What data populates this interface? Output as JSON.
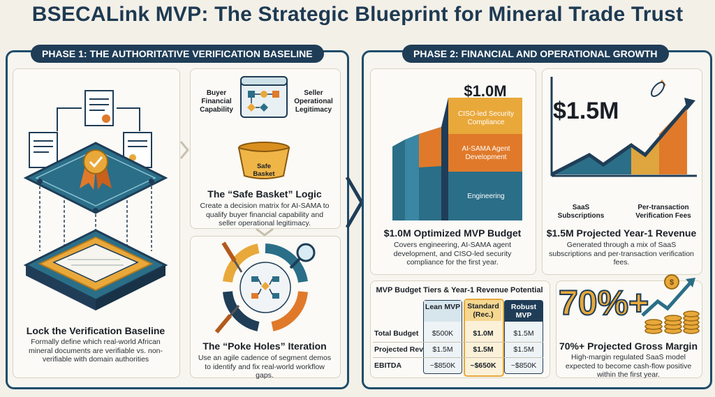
{
  "title": "BSECALink MVP: The Strategic Blueprint for Mineral Trade Trust",
  "phase1": {
    "tab": "PHASE 1: THE AUTHORITATIVE VERIFICATION BASELINE",
    "baseline": {
      "heading": "Lock the Verification Baseline",
      "body": "Formally define which real-world African mineral documents are verifiable vs. non-verifiable with domain authorities"
    },
    "matrix": {
      "left_label": "Buyer Financial Capability",
      "right_label": "Seller Operational Legitimacy"
    },
    "safe_basket": {
      "basket_label": "Safe Basket",
      "heading": "The “Safe Basket” Logic",
      "body": "Create a decision matrix for AI-SAMA to qualify buyer financial capability and seller operational legitimacy."
    },
    "poke_holes": {
      "heading": "The “Poke Holes” Iteration",
      "body": "Use an agile cadence of segment demos to identify and fix real-world workflow gaps."
    }
  },
  "phase2": {
    "tab": "PHASE 2: FINANCIAL AND OPERATIONAL GROWTH",
    "budget": {
      "total": "$1.0M",
      "layers": [
        "CISO-led Security Compliance",
        "AI-SAMA Agent Development",
        "Engineering"
      ],
      "heading": "$1.0M Optimized MVP Budget",
      "body": "Covers engineering, AI-SAMA agent development, and CISO-led security compliance for the first year."
    },
    "revenue": {
      "amount": "$1.5M",
      "label_left": "SaaS Subscriptions",
      "label_right": "Per-transaction Verification Fees",
      "heading": "$1.5M Projected Year-1 Revenue",
      "body": "Generated through a mix of SaaS subscriptions and per-transaction verification fees."
    },
    "tiers": {
      "heading": "MVP Budget Tiers & Year-1 Revenue Potential",
      "columns": [
        "Lean MVP",
        "Standard (Rec.)",
        "Robust MVP"
      ],
      "rows": [
        {
          "label": "Total Budget",
          "values": [
            "$500K",
            "$1.0M",
            "$1.5M"
          ]
        },
        {
          "label": "Projected Rev",
          "values": [
            "$1.5M",
            "$1.5M",
            "$1.5M"
          ]
        },
        {
          "label": "EBITDA",
          "values": [
            "~$850K",
            "~$650K",
            "~$850K"
          ]
        }
      ]
    },
    "margin": {
      "big": "70%+",
      "heading": "70%+ Projected Gross Margin",
      "body": "High-margin regulated SaaS model expected to become cash-flow positive within the first year."
    }
  },
  "colors": {
    "navy": "#1f3d57",
    "teal": "#2b6e88",
    "orange": "#e07a2a",
    "gold": "#e9a83a",
    "cream": "#f7f5ef"
  }
}
